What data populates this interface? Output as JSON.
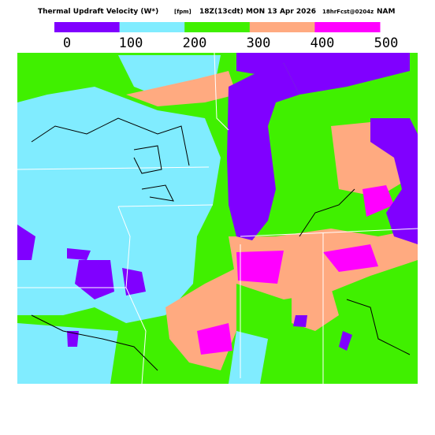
{
  "header": {
    "title": "Thermal Updraft Velocity (W*)",
    "units": "[fpm]",
    "time": "18Z(13cdt) MON 13 Apr 2026",
    "forecast": "18hrFcst@0204z",
    "model": "NAM"
  },
  "legend": {
    "colors": [
      "#8000ff",
      "#80ecff",
      "#40f000",
      "#ffaa80",
      "#ff00ff"
    ],
    "labels": [
      0,
      100,
      200,
      300,
      400,
      500
    ]
  }
}
